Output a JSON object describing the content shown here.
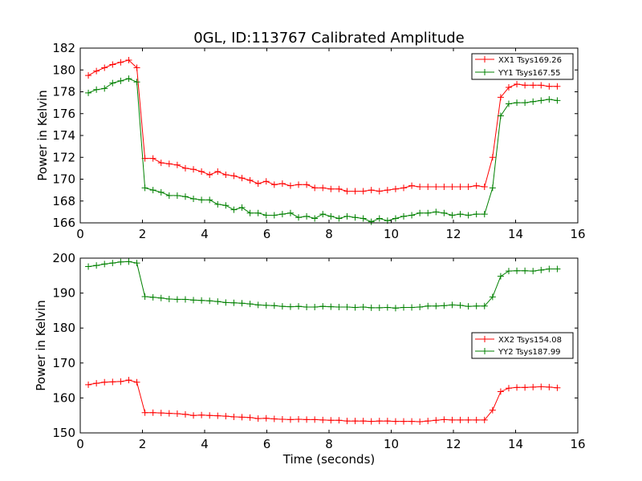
{
  "figure": {
    "title": "0GL, ID:113767 Calibrated Amplitude"
  },
  "chart_data": [
    {
      "type": "line",
      "title": "0GL, ID:113767 Calibrated Amplitude",
      "xlabel": "",
      "ylabel": "Power in Kelvin",
      "xlim": [
        0,
        16
      ],
      "ylim": [
        166,
        182
      ],
      "xticks": [
        0,
        2,
        4,
        6,
        8,
        10,
        12,
        14,
        16
      ],
      "yticks": [
        166,
        168,
        170,
        172,
        174,
        176,
        178,
        180,
        182
      ],
      "grid": false,
      "legend_position": "top-right",
      "x": [
        0.26,
        0.52,
        0.78,
        1.04,
        1.3,
        1.56,
        1.82,
        2.08,
        2.34,
        2.6,
        2.86,
        3.12,
        3.38,
        3.64,
        3.9,
        4.16,
        4.42,
        4.68,
        4.94,
        5.2,
        5.46,
        5.72,
        5.98,
        6.24,
        6.5,
        6.76,
        7.02,
        7.28,
        7.54,
        7.8,
        8.06,
        8.32,
        8.58,
        8.84,
        9.1,
        9.36,
        9.62,
        9.88,
        10.14,
        10.4,
        10.66,
        10.92,
        11.18,
        11.44,
        11.7,
        11.96,
        12.22,
        12.48,
        12.74,
        13.0,
        13.26,
        13.52,
        13.78,
        14.04,
        14.3,
        14.56,
        14.82,
        15.08,
        15.34
      ],
      "series": [
        {
          "name": "XX1 Tsys169.26",
          "color": "#ff0000",
          "values": [
            179.5,
            179.9,
            180.2,
            180.5,
            180.7,
            180.9,
            180.2,
            171.9,
            171.9,
            171.5,
            171.4,
            171.3,
            171.0,
            170.9,
            170.7,
            170.4,
            170.7,
            170.4,
            170.3,
            170.1,
            169.9,
            169.6,
            169.8,
            169.5,
            169.6,
            169.4,
            169.5,
            169.5,
            169.2,
            169.2,
            169.1,
            169.1,
            168.9,
            168.9,
            168.9,
            169.0,
            168.9,
            169.0,
            169.1,
            169.2,
            169.4,
            169.3,
            169.3,
            169.3,
            169.3,
            169.3,
            169.3,
            169.3,
            169.4,
            169.3,
            172.0,
            177.5,
            178.4,
            178.7,
            178.6,
            178.6,
            178.6,
            178.5,
            178.5
          ]
        },
        {
          "name": "YY1 Tsys167.55",
          "color": "#008000",
          "values": [
            177.9,
            178.2,
            178.3,
            178.8,
            179.0,
            179.2,
            178.9,
            169.2,
            169.0,
            168.8,
            168.5,
            168.5,
            168.4,
            168.2,
            168.1,
            168.1,
            167.7,
            167.6,
            167.2,
            167.4,
            166.9,
            166.9,
            166.7,
            166.7,
            166.8,
            166.9,
            166.5,
            166.6,
            166.4,
            166.8,
            166.6,
            166.4,
            166.6,
            166.5,
            166.4,
            166.1,
            166.4,
            166.2,
            166.4,
            166.6,
            166.7,
            166.9,
            166.9,
            167.0,
            166.9,
            166.7,
            166.8,
            166.7,
            166.8,
            166.8,
            169.2,
            175.8,
            176.9,
            177.0,
            177.0,
            177.1,
            177.2,
            177.3,
            177.2
          ]
        }
      ]
    },
    {
      "type": "line",
      "title": "",
      "xlabel": "Time (seconds)",
      "ylabel": "Power in Kelvin",
      "xlim": [
        0,
        16
      ],
      "ylim": [
        150,
        200
      ],
      "xticks": [
        0,
        2,
        4,
        6,
        8,
        10,
        12,
        14,
        16
      ],
      "yticks": [
        150,
        160,
        170,
        180,
        190,
        200
      ],
      "grid": false,
      "legend_position": "center-right",
      "x": [
        0.26,
        0.52,
        0.78,
        1.04,
        1.3,
        1.56,
        1.82,
        2.08,
        2.34,
        2.6,
        2.86,
        3.12,
        3.38,
        3.64,
        3.9,
        4.16,
        4.42,
        4.68,
        4.94,
        5.2,
        5.46,
        5.72,
        5.98,
        6.24,
        6.5,
        6.76,
        7.02,
        7.28,
        7.54,
        7.8,
        8.06,
        8.32,
        8.58,
        8.84,
        9.1,
        9.36,
        9.62,
        9.88,
        10.14,
        10.4,
        10.66,
        10.92,
        11.18,
        11.44,
        11.7,
        11.96,
        12.22,
        12.48,
        12.74,
        13.0,
        13.26,
        13.52,
        13.78,
        14.04,
        14.3,
        14.56,
        14.82,
        15.08,
        15.34
      ],
      "series": [
        {
          "name": "XX2 Tsys154.08",
          "color": "#ff0000",
          "values": [
            163.8,
            164.2,
            164.5,
            164.6,
            164.7,
            165.1,
            164.5,
            155.8,
            155.8,
            155.7,
            155.6,
            155.5,
            155.3,
            155.0,
            155.1,
            155.0,
            154.9,
            154.8,
            154.6,
            154.5,
            154.4,
            154.1,
            154.2,
            154.0,
            153.9,
            153.8,
            153.9,
            153.8,
            153.8,
            153.7,
            153.6,
            153.6,
            153.4,
            153.4,
            153.4,
            153.3,
            153.4,
            153.4,
            153.3,
            153.3,
            153.3,
            153.2,
            153.4,
            153.6,
            153.8,
            153.7,
            153.7,
            153.7,
            153.7,
            153.7,
            156.5,
            161.8,
            162.8,
            163.0,
            163.0,
            163.1,
            163.2,
            163.1,
            162.9
          ]
        },
        {
          "name": "YY2 Tsys187.99",
          "color": "#008000",
          "values": [
            197.6,
            197.9,
            198.3,
            198.6,
            198.9,
            199.0,
            198.6,
            189.0,
            188.8,
            188.6,
            188.3,
            188.2,
            188.2,
            188.0,
            187.9,
            187.8,
            187.6,
            187.3,
            187.2,
            187.1,
            186.9,
            186.6,
            186.5,
            186.4,
            186.2,
            186.1,
            186.2,
            186.0,
            186.0,
            186.2,
            186.1,
            186.0,
            186.0,
            185.9,
            186.0,
            185.8,
            185.8,
            185.9,
            185.7,
            185.9,
            185.9,
            186.0,
            186.3,
            186.3,
            186.4,
            186.6,
            186.5,
            186.2,
            186.3,
            186.3,
            188.9,
            194.8,
            196.3,
            196.4,
            196.4,
            196.3,
            196.6,
            196.9,
            196.9
          ]
        }
      ]
    }
  ]
}
